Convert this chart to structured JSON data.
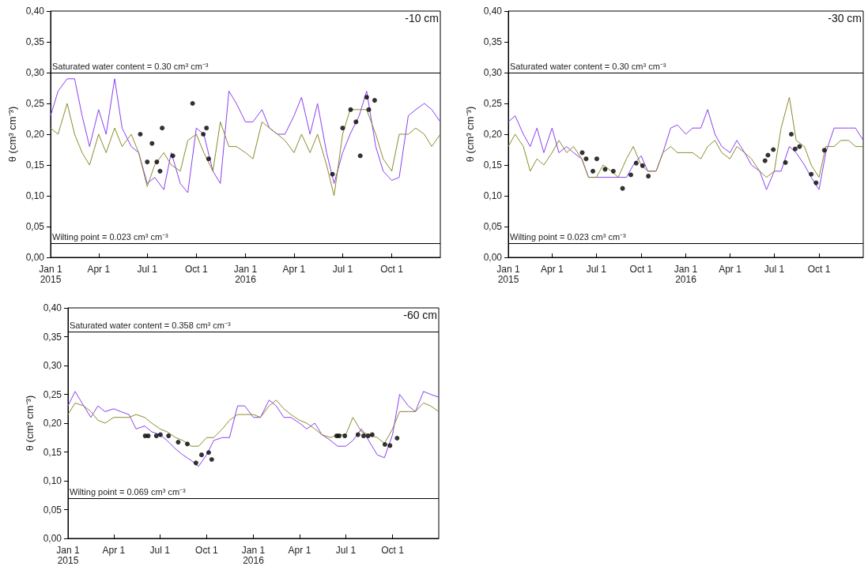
{
  "chart_data": [
    {
      "type": "line",
      "ylabel": "θ (cm³ cm⁻³)",
      "annotations": [
        "-10 cm"
      ],
      "line_style": "solid",
      "xlim": [
        "2015-01-01",
        "2016-12-31"
      ],
      "xticks": [
        {
          "value": "2015-01-01",
          "label": "Jan 1\n2015"
        },
        {
          "value": "2015-04-01",
          "label": "Apr 1"
        },
        {
          "value": "2015-07-01",
          "label": "Jul 1"
        },
        {
          "value": "2015-10-01",
          "label": "Oct 1"
        },
        {
          "value": "2016-01-01",
          "label": "Jan 1\n2016"
        },
        {
          "value": "2016-04-01",
          "label": "Apr 1"
        },
        {
          "value": "2016-07-01",
          "label": "Jul 1"
        },
        {
          "value": "2016-10-01",
          "label": "Oct 1"
        }
      ],
      "ylim": [
        0,
        0.4
      ],
      "yticks": [
        {
          "value": 0,
          "label": "0,00"
        },
        {
          "value": 0.05,
          "label": "0,05"
        },
        {
          "value": 0.1,
          "label": "0,10"
        },
        {
          "value": 0.15,
          "label": "0,15"
        },
        {
          "value": 0.2,
          "label": "0,20"
        },
        {
          "value": 0.25,
          "label": "0,25"
        },
        {
          "value": 0.3,
          "label": "0,30"
        },
        {
          "value": 0.35,
          "label": "0,35"
        },
        {
          "value": 0.4,
          "label": "0,40"
        }
      ],
      "ref_lines": [
        {
          "axis": "y",
          "value": 0.3,
          "label": "Saturated water content = 0.30 cm³ cm⁻³",
          "color": "#000000"
        },
        {
          "axis": "y",
          "value": 0.023,
          "label": "Wilting point = 0.023 cm³ cm⁻³",
          "color": "#000000"
        }
      ],
      "x": [
        "2015-01-01",
        "2015-01-15",
        "2015-02-01",
        "2015-02-15",
        "2015-03-01",
        "2015-03-15",
        "2015-04-01",
        "2015-04-15",
        "2015-05-01",
        "2015-05-15",
        "2015-06-01",
        "2015-06-15",
        "2015-07-01",
        "2015-07-15",
        "2015-08-01",
        "2015-08-15",
        "2015-09-01",
        "2015-09-15",
        "2015-10-01",
        "2015-10-15",
        "2015-11-01",
        "2015-11-15",
        "2015-12-01",
        "2015-12-15",
        "2016-01-01",
        "2016-01-15",
        "2016-02-01",
        "2016-02-15",
        "2016-03-01",
        "2016-03-15",
        "2016-04-01",
        "2016-04-15",
        "2016-05-01",
        "2016-05-15",
        "2016-06-01",
        "2016-06-15",
        "2016-07-01",
        "2016-07-15",
        "2016-08-01",
        "2016-08-15",
        "2016-09-01",
        "2016-09-15",
        "2016-10-01",
        "2016-10-15",
        "2016-11-01",
        "2016-11-15",
        "2016-12-01",
        "2016-12-15",
        "2016-12-31"
      ],
      "series": [
        {
          "type": "line",
          "color": "#8a3ff0",
          "values": [
            0.23,
            0.27,
            0.29,
            0.29,
            0.23,
            0.18,
            0.24,
            0.2,
            0.29,
            0.21,
            0.18,
            0.17,
            0.12,
            0.13,
            0.11,
            0.17,
            0.12,
            0.105,
            0.21,
            0.2,
            0.14,
            0.12,
            0.27,
            0.25,
            0.22,
            0.22,
            0.24,
            0.21,
            0.2,
            0.2,
            0.23,
            0.26,
            0.2,
            0.25,
            0.17,
            0.12,
            0.17,
            0.2,
            0.23,
            0.27,
            0.18,
            0.14,
            0.125,
            0.13,
            0.23,
            0.24,
            0.25,
            0.24,
            0.22
          ]
        },
        {
          "type": "line",
          "color": "#8b8a2c",
          "values": [
            0.21,
            0.2,
            0.25,
            0.2,
            0.17,
            0.15,
            0.2,
            0.17,
            0.21,
            0.18,
            0.2,
            0.17,
            0.115,
            0.15,
            0.17,
            0.15,
            0.14,
            0.19,
            0.2,
            0.17,
            0.14,
            0.22,
            0.18,
            0.18,
            0.17,
            0.16,
            0.22,
            0.21,
            0.2,
            0.19,
            0.17,
            0.2,
            0.17,
            0.2,
            0.15,
            0.1,
            0.2,
            0.24,
            0.24,
            0.24,
            0.2,
            0.16,
            0.14,
            0.2,
            0.2,
            0.21,
            0.2,
            0.18,
            0.2
          ]
        },
        {
          "type": "scatter",
          "color": "#000000",
          "marker": "circle",
          "x": [
            "2015-06-18",
            "2015-07-01",
            "2015-07-10",
            "2015-07-19",
            "2015-07-25",
            "2015-07-29",
            "2015-08-18",
            "2015-09-24",
            "2015-10-14",
            "2015-10-20",
            "2015-10-24",
            "2016-06-12",
            "2016-07-01",
            "2016-07-16",
            "2016-07-26",
            "2016-08-03",
            "2016-08-15",
            "2016-08-19",
            "2016-08-30"
          ],
          "values": [
            0.2,
            0.155,
            0.185,
            0.155,
            0.14,
            0.21,
            0.165,
            0.25,
            0.2,
            0.21,
            0.16,
            0.135,
            0.21,
            0.24,
            0.22,
            0.165,
            0.26,
            0.24,
            0.255
          ]
        }
      ]
    },
    {
      "type": "line",
      "ylabel": "θ (cm³ cm⁻³)",
      "annotations": [
        "-30 cm"
      ],
      "line_style": "solid",
      "xlim": [
        "2015-01-01",
        "2016-12-31"
      ],
      "xticks": [
        {
          "value": "2015-01-01",
          "label": "Jan 1\n2015"
        },
        {
          "value": "2015-04-01",
          "label": "Apr 1"
        },
        {
          "value": "2015-07-01",
          "label": "Jul 1"
        },
        {
          "value": "2015-10-01",
          "label": "Oct 1"
        },
        {
          "value": "2016-01-01",
          "label": "Jan 1\n2016"
        },
        {
          "value": "2016-04-01",
          "label": "Apr 1"
        },
        {
          "value": "2016-07-01",
          "label": "Jul 1"
        },
        {
          "value": "2016-10-01",
          "label": "Oct 1"
        }
      ],
      "ylim": [
        0,
        0.4
      ],
      "yticks": [
        {
          "value": 0,
          "label": "0,00"
        },
        {
          "value": 0.05,
          "label": "0,05"
        },
        {
          "value": 0.1,
          "label": "0,10"
        },
        {
          "value": 0.15,
          "label": "0,15"
        },
        {
          "value": 0.2,
          "label": "0,20"
        },
        {
          "value": 0.25,
          "label": "0,25"
        },
        {
          "value": 0.3,
          "label": "0,30"
        },
        {
          "value": 0.35,
          "label": "0,35"
        },
        {
          "value": 0.4,
          "label": "0,40"
        }
      ],
      "ref_lines": [
        {
          "axis": "y",
          "value": 0.3,
          "label": "Saturated water content = 0.30 cm³ cm⁻³",
          "color": "#000000"
        },
        {
          "axis": "y",
          "value": 0.023,
          "label": "Wilting point = 0.023 cm³ cm⁻³",
          "color": "#000000"
        }
      ],
      "x": [
        "2015-01-01",
        "2015-01-15",
        "2015-02-01",
        "2015-02-15",
        "2015-03-01",
        "2015-03-15",
        "2015-04-01",
        "2015-04-15",
        "2015-05-01",
        "2015-05-15",
        "2015-06-01",
        "2015-06-15",
        "2015-07-01",
        "2015-07-15",
        "2015-08-01",
        "2015-08-15",
        "2015-09-01",
        "2015-09-15",
        "2015-10-01",
        "2015-10-15",
        "2015-11-01",
        "2015-11-15",
        "2015-12-01",
        "2015-12-15",
        "2016-01-01",
        "2016-01-15",
        "2016-02-01",
        "2016-02-15",
        "2016-03-01",
        "2016-03-15",
        "2016-04-01",
        "2016-04-15",
        "2016-05-01",
        "2016-05-15",
        "2016-06-01",
        "2016-06-15",
        "2016-07-01",
        "2016-07-15",
        "2016-08-01",
        "2016-08-15",
        "2016-09-01",
        "2016-09-15",
        "2016-10-01",
        "2016-10-15",
        "2016-11-01",
        "2016-11-15",
        "2016-12-01",
        "2016-12-15",
        "2016-12-31"
      ],
      "series": [
        {
          "type": "line",
          "color": "#8a3ff0",
          "values": [
            0.22,
            0.23,
            0.2,
            0.18,
            0.21,
            0.17,
            0.21,
            0.17,
            0.18,
            0.17,
            0.16,
            0.13,
            0.13,
            0.13,
            0.13,
            0.13,
            0.13,
            0.15,
            0.165,
            0.14,
            0.14,
            0.17,
            0.21,
            0.215,
            0.2,
            0.21,
            0.21,
            0.24,
            0.2,
            0.18,
            0.17,
            0.19,
            0.17,
            0.15,
            0.14,
            0.11,
            0.14,
            0.14,
            0.18,
            0.17,
            0.15,
            0.13,
            0.11,
            0.17,
            0.21,
            0.21,
            0.21,
            0.21,
            0.19
          ]
        },
        {
          "type": "line",
          "color": "#8b8a2c",
          "values": [
            0.18,
            0.2,
            0.18,
            0.14,
            0.16,
            0.15,
            0.17,
            0.19,
            0.17,
            0.18,
            0.16,
            0.13,
            0.13,
            0.15,
            0.14,
            0.13,
            0.16,
            0.18,
            0.15,
            0.14,
            0.14,
            0.17,
            0.18,
            0.17,
            0.17,
            0.17,
            0.16,
            0.18,
            0.19,
            0.17,
            0.16,
            0.18,
            0.17,
            0.16,
            0.14,
            0.13,
            0.14,
            0.21,
            0.26,
            0.19,
            0.18,
            0.15,
            0.13,
            0.18,
            0.18,
            0.19,
            0.19,
            0.18,
            0.18
          ]
        },
        {
          "type": "scatter",
          "color": "#000000",
          "marker": "circle",
          "x": [
            "2015-06-02",
            "2015-06-10",
            "2015-06-24",
            "2015-07-02",
            "2015-07-19",
            "2015-08-05",
            "2015-08-24",
            "2015-09-10",
            "2015-09-21",
            "2015-10-04",
            "2015-10-16",
            "2016-06-12",
            "2016-06-18",
            "2016-06-29",
            "2016-07-24",
            "2016-08-05",
            "2016-08-13",
            "2016-08-22",
            "2016-09-15",
            "2016-09-25",
            "2016-10-12"
          ],
          "values": [
            0.17,
            0.16,
            0.14,
            0.16,
            0.143,
            0.14,
            0.112,
            0.134,
            0.153,
            0.149,
            0.132,
            0.157,
            0.166,
            0.175,
            0.154,
            0.2,
            0.176,
            0.18,
            0.135,
            0.121,
            0.174
          ]
        }
      ]
    },
    {
      "type": "line",
      "ylabel": "θ (cm³ cm⁻³)",
      "annotations": [
        "-60 cm"
      ],
      "line_style": "solid",
      "xlim": [
        "2015-01-01",
        "2016-12-31"
      ],
      "xticks": [
        {
          "value": "2015-01-01",
          "label": "Jan 1\n2015"
        },
        {
          "value": "2015-04-01",
          "label": "Apr 1"
        },
        {
          "value": "2015-07-01",
          "label": "Jul 1"
        },
        {
          "value": "2015-10-01",
          "label": "Oct 1"
        },
        {
          "value": "2016-01-01",
          "label": "Jan 1\n2016"
        },
        {
          "value": "2016-04-01",
          "label": "Apr 1"
        },
        {
          "value": "2016-07-01",
          "label": "Jul 1"
        },
        {
          "value": "2016-10-01",
          "label": "Oct 1"
        }
      ],
      "ylim": [
        0,
        0.4
      ],
      "yticks": [
        {
          "value": 0,
          "label": "0,00"
        },
        {
          "value": 0.05,
          "label": "0,05"
        },
        {
          "value": 0.1,
          "label": "0,10"
        },
        {
          "value": 0.15,
          "label": "0,15"
        },
        {
          "value": 0.2,
          "label": "0,20"
        },
        {
          "value": 0.25,
          "label": "0,25"
        },
        {
          "value": 0.3,
          "label": "0,30"
        },
        {
          "value": 0.35,
          "label": "0,35"
        },
        {
          "value": 0.4,
          "label": "0,40"
        }
      ],
      "ref_lines": [
        {
          "axis": "y",
          "value": 0.358,
          "label": "Saturated water content = 0.358 cm³ cm⁻³",
          "color": "#000000"
        },
        {
          "axis": "y",
          "value": 0.069,
          "label": "Wilting point = 0.069 cm³ cm⁻³",
          "color": "#000000"
        }
      ],
      "x": [
        "2015-01-01",
        "2015-01-15",
        "2015-02-01",
        "2015-02-15",
        "2015-03-01",
        "2015-03-15",
        "2015-04-01",
        "2015-04-15",
        "2015-05-01",
        "2015-05-15",
        "2015-06-01",
        "2015-06-15",
        "2015-07-01",
        "2015-07-15",
        "2015-08-01",
        "2015-08-15",
        "2015-09-01",
        "2015-09-15",
        "2015-10-01",
        "2015-10-15",
        "2015-11-01",
        "2015-11-15",
        "2015-12-01",
        "2015-12-15",
        "2016-01-01",
        "2016-01-15",
        "2016-02-01",
        "2016-02-15",
        "2016-03-01",
        "2016-03-15",
        "2016-04-01",
        "2016-04-15",
        "2016-05-01",
        "2016-05-15",
        "2016-06-01",
        "2016-06-15",
        "2016-07-01",
        "2016-07-15",
        "2016-08-01",
        "2016-08-15",
        "2016-09-01",
        "2016-09-15",
        "2016-10-01",
        "2016-10-15",
        "2016-11-01",
        "2016-11-15",
        "2016-12-01",
        "2016-12-15",
        "2016-12-31"
      ],
      "series": [
        {
          "type": "line",
          "color": "#8a3ff0",
          "values": [
            0.23,
            0.255,
            0.23,
            0.21,
            0.23,
            0.22,
            0.225,
            0.22,
            0.215,
            0.19,
            0.195,
            0.185,
            0.18,
            0.17,
            0.155,
            0.145,
            0.135,
            0.125,
            0.145,
            0.17,
            0.175,
            0.175,
            0.23,
            0.23,
            0.21,
            0.21,
            0.24,
            0.23,
            0.21,
            0.21,
            0.2,
            0.19,
            0.2,
            0.18,
            0.17,
            0.16,
            0.16,
            0.17,
            0.19,
            0.17,
            0.145,
            0.14,
            0.18,
            0.25,
            0.23,
            0.22,
            0.255,
            0.25,
            0.245
          ]
        },
        {
          "type": "line",
          "color": "#8b8a2c",
          "values": [
            0.215,
            0.235,
            0.23,
            0.22,
            0.205,
            0.2,
            0.21,
            0.21,
            0.21,
            0.215,
            0.21,
            0.2,
            0.19,
            0.185,
            0.175,
            0.17,
            0.16,
            0.16,
            0.175,
            0.175,
            0.19,
            0.205,
            0.215,
            0.215,
            0.215,
            0.21,
            0.23,
            0.24,
            0.225,
            0.215,
            0.205,
            0.2,
            0.19,
            0.18,
            0.175,
            0.18,
            0.18,
            0.21,
            0.185,
            0.18,
            0.175,
            0.165,
            0.19,
            0.22,
            0.22,
            0.22,
            0.235,
            0.23,
            0.22
          ]
        },
        {
          "type": "scatter",
          "color": "#000000",
          "marker": "circle",
          "x": [
            "2015-06-02",
            "2015-06-08",
            "2015-06-24",
            "2015-07-02",
            "2015-07-18",
            "2015-08-06",
            "2015-08-24",
            "2015-09-10",
            "2015-09-21",
            "2015-10-05",
            "2015-10-11",
            "2016-06-13",
            "2016-06-18",
            "2016-06-29",
            "2016-07-25",
            "2016-08-05",
            "2016-08-14",
            "2016-08-22",
            "2016-09-16",
            "2016-09-26",
            "2016-10-10"
          ],
          "values": [
            0.178,
            0.178,
            0.178,
            0.18,
            0.178,
            0.167,
            0.164,
            0.131,
            0.145,
            0.149,
            0.137,
            0.178,
            0.178,
            0.178,
            0.18,
            0.178,
            0.178,
            0.18,
            0.163,
            0.161,
            0.174
          ]
        }
      ]
    }
  ]
}
